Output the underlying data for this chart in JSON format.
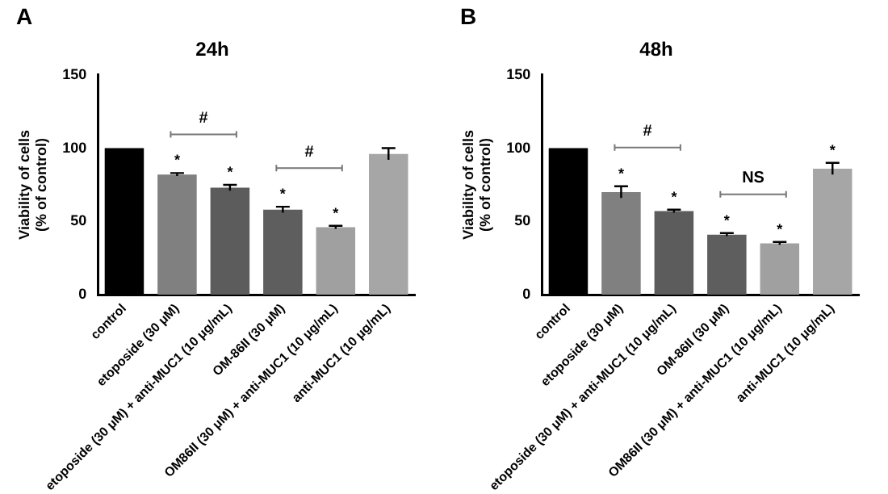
{
  "chart_data": [
    {
      "type": "bar",
      "title": "24h",
      "ylabel": "Viability of cells\n(% of control)",
      "categories": [
        "control",
        "etoposide (30 μM)",
        "etoposide (30 μM) + anti-MUC1 (10 μg/mL)",
        "OM-86II (30 μM)",
        "OM86II (30 μM) + anti-MUC1 (10 μg/mL)",
        "anti-MUC1 (10 μg/mL)"
      ],
      "values": [
        100,
        82,
        73,
        58,
        46,
        96
      ],
      "errors": [
        null,
        1,
        2,
        2,
        1,
        4
      ],
      "value_labels": [
        null,
        "*",
        "*",
        "*",
        "*",
        null
      ],
      "colors": [
        "#000000",
        "#808080",
        "#5c5c5c",
        "#5e5e5e",
        "#a0a0a0",
        "#a6a6a6"
      ],
      "ylim": [
        0,
        150
      ],
      "yticks": [
        0,
        50,
        100,
        150
      ],
      "grid": false,
      "legend": false,
      "annotations": [
        "A",
        "#",
        "#"
      ]
    },
    {
      "type": "bar",
      "title": "48h",
      "ylabel": "Viability of cells\n(% of control)",
      "categories": [
        "control",
        "etoposide (30 μM)",
        "etoposide (30 μM) + anti-MUC1 (10 μg/mL)",
        "OM-86II (30 μM)",
        "OM86II (30 μM) + anti-MUC1 (10 μg/mL)",
        "anti-MUC1 (10 μg/mL)"
      ],
      "values": [
        100,
        70,
        57,
        41,
        35,
        86
      ],
      "errors": [
        null,
        4,
        1,
        1,
        1,
        4
      ],
      "value_labels": [
        null,
        "*",
        "*",
        "*",
        "*",
        "*"
      ],
      "colors": [
        "#000000",
        "#808080",
        "#5c5c5c",
        "#5e5e5e",
        "#a0a0a0",
        "#a6a6a6"
      ],
      "ylim": [
        0,
        150
      ],
      "yticks": [
        0,
        50,
        100,
        150
      ],
      "grid": false,
      "legend": false,
      "annotations": [
        "B",
        "#",
        "NS"
      ]
    }
  ]
}
